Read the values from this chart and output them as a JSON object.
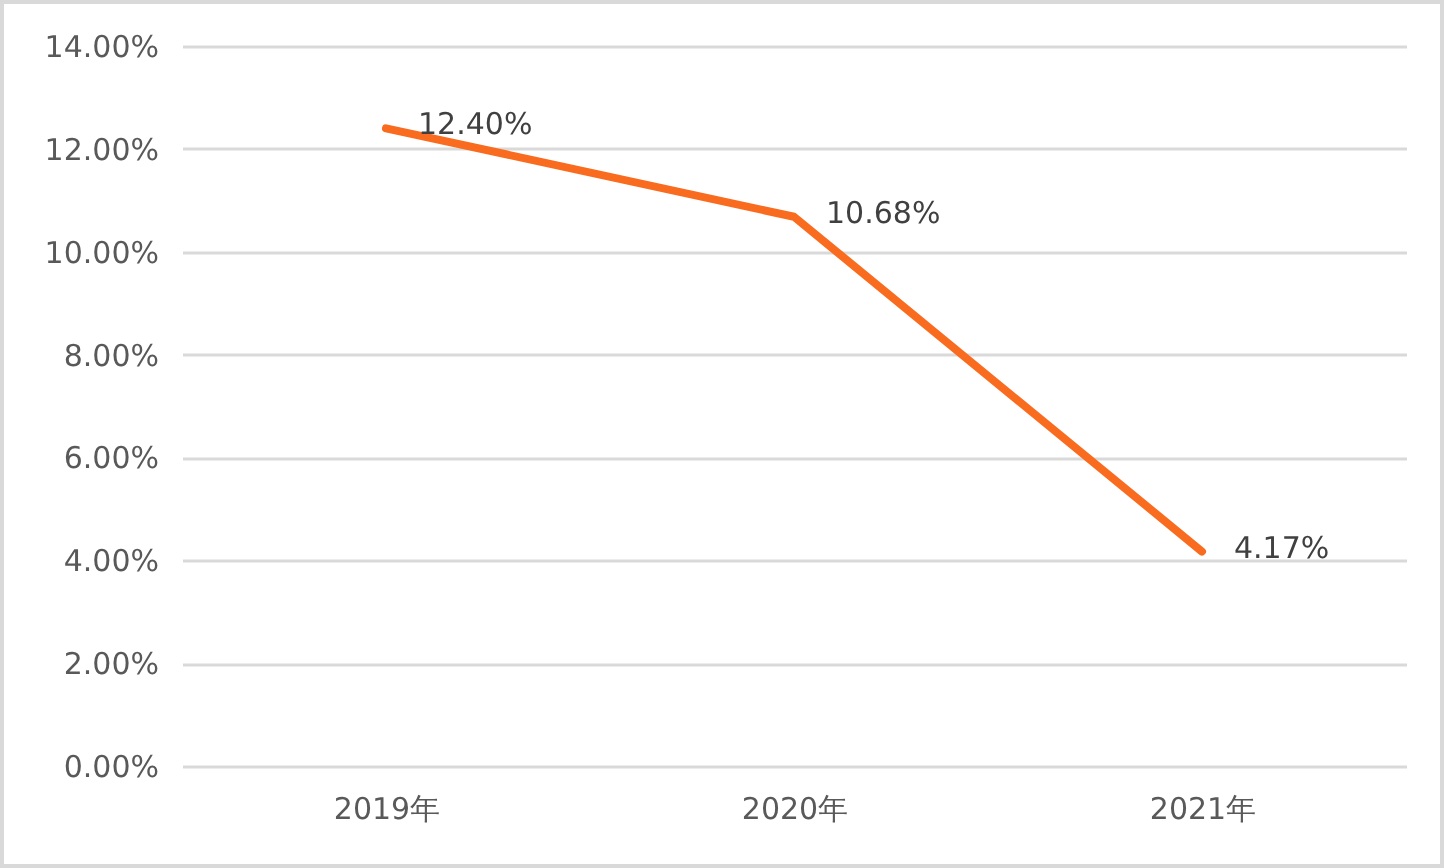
{
  "chart_data": {
    "type": "line",
    "categories": [
      "2019年",
      "2020年",
      "2021年"
    ],
    "values": [
      12.4,
      10.68,
      4.17
    ],
    "color": "#f96b1f",
    "value_labels": [
      "12.40%",
      "10.68%",
      "4.17%"
    ],
    "ylim": [
      0,
      14
    ],
    "yticks": [
      {
        "value": 0,
        "label": "0.00%"
      },
      {
        "value": 2,
        "label": "2.00%"
      },
      {
        "value": 4,
        "label": "4.00%"
      },
      {
        "value": 6,
        "label": "6.00%"
      },
      {
        "value": 8,
        "label": "8.00%"
      },
      {
        "value": 10,
        "label": "10.00%"
      },
      {
        "value": 12,
        "label": "12.00%"
      },
      {
        "value": 14,
        "label": "14.00%"
      }
    ],
    "grid": "y",
    "line_style": "solid"
  }
}
